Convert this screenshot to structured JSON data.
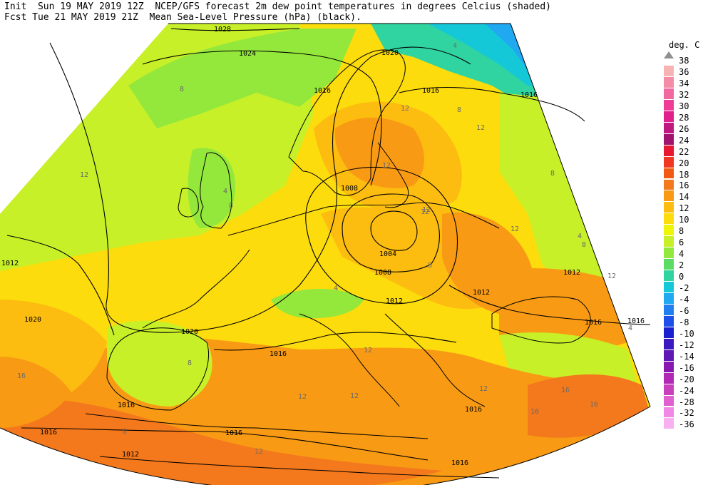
{
  "header": {
    "line1": "Init  Sun 19 MAY 2019 12Z  NCEP/GFS forecast 2m dew point temperatures in degrees Celcius (shaded)",
    "line2": "Fcst Tue 21 MAY 2019 21Z  Mean Sea-Level Pressure (hPa) (black)."
  },
  "legend": {
    "title": "deg. C",
    "levels": [
      {
        "label": "38",
        "color": "#ffffff"
      },
      {
        "label": "36",
        "color": "#f8b4b4"
      },
      {
        "label": "34",
        "color": "#f48ca8"
      },
      {
        "label": "32",
        "color": "#f06aa0"
      },
      {
        "label": "30",
        "color": "#f03c98"
      },
      {
        "label": "28",
        "color": "#e0208c"
      },
      {
        "label": "26",
        "color": "#c01880"
      },
      {
        "label": "24",
        "color": "#a01470"
      },
      {
        "label": "22",
        "color": "#e81830"
      },
      {
        "label": "20",
        "color": "#f03820"
      },
      {
        "label": "18",
        "color": "#f05a14"
      },
      {
        "label": "16",
        "color": "#f4781c"
      },
      {
        "label": "14",
        "color": "#f89a14"
      },
      {
        "label": "12",
        "color": "#fcbc10"
      },
      {
        "label": "10",
        "color": "#fcdc0c"
      },
      {
        "label": "8",
        "color": "#f0f408"
      },
      {
        "label": "6",
        "color": "#c8f028"
      },
      {
        "label": "4",
        "color": "#94e83c"
      },
      {
        "label": "2",
        "color": "#5cdc64"
      },
      {
        "label": "0",
        "color": "#30d4a0"
      },
      {
        "label": "-2",
        "color": "#14c8d8"
      },
      {
        "label": "-4",
        "color": "#20a8f0"
      },
      {
        "label": "-6",
        "color": "#2080f0"
      },
      {
        "label": "-8",
        "color": "#1c50e8"
      },
      {
        "label": "-10",
        "color": "#1820d0"
      },
      {
        "label": "-12",
        "color": "#3c18c0"
      },
      {
        "label": "-14",
        "color": "#6018b4"
      },
      {
        "label": "-16",
        "color": "#8818b0"
      },
      {
        "label": "-20",
        "color": "#b028b4"
      },
      {
        "label": "-24",
        "color": "#c840bc"
      },
      {
        "label": "-28",
        "color": "#e060d0"
      },
      {
        "label": "-32",
        "color": "#f088e4"
      },
      {
        "label": "-36",
        "color": "#f8b0f0"
      }
    ]
  },
  "isobar_labels": [
    "1028",
    "1024",
    "1020",
    "1016",
    "1016",
    "1016",
    "1016",
    "1012",
    "1012",
    "1008",
    "1008",
    "1004",
    "1012",
    "1016",
    "1020",
    "1020",
    "1016",
    "1016",
    "1016",
    "1016",
    "1016",
    "1012",
    "1012",
    "1016",
    "1018",
    "1016"
  ],
  "dewpoint_labels": [
    "8",
    "12",
    "4",
    "8",
    "12",
    "16",
    "12",
    "12",
    "12",
    "4",
    "8",
    "12",
    "12",
    "4",
    "8",
    "12",
    "8",
    "12",
    "12",
    "16",
    "16",
    "16",
    "8",
    "12",
    "8",
    "4",
    "4",
    "8",
    "12",
    "12"
  ]
}
